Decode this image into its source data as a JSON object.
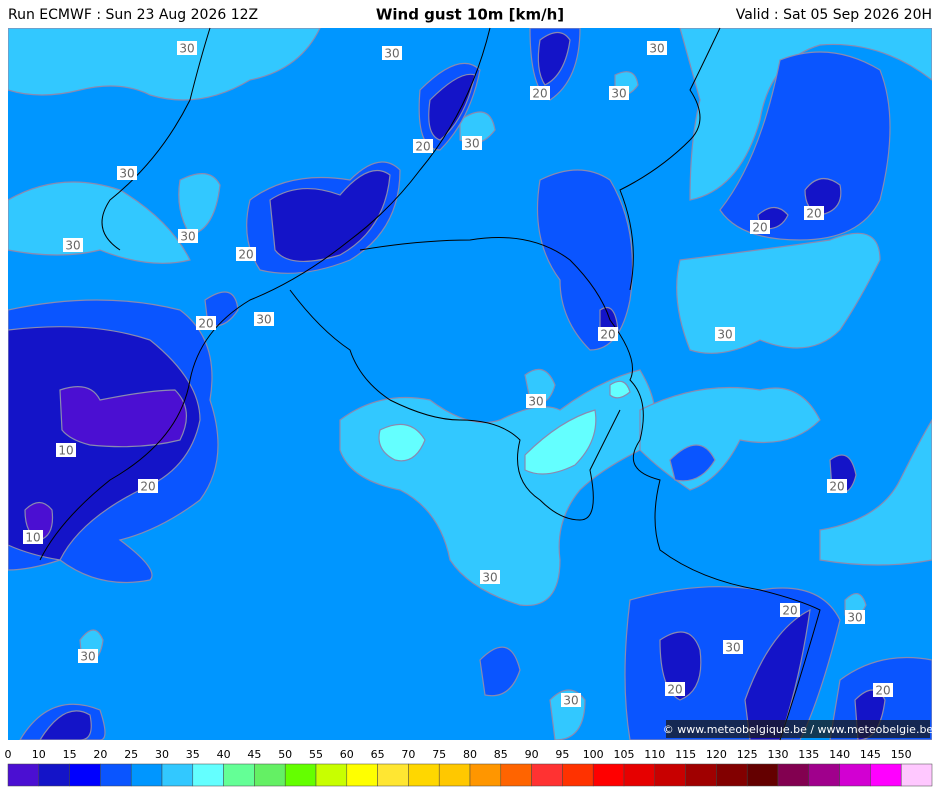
{
  "header": {
    "run": "Run ECMWF : Sun 23 Aug 2026 12Z",
    "title": "Wind gust 10m [km/h]",
    "valid": "Valid : Sat 05 Sep 2026 20H"
  },
  "contour_labels": [
    "30",
    "30",
    "30",
    "20",
    "30",
    "20",
    "30",
    "30",
    "30",
    "30",
    "20",
    "20",
    "30",
    "20",
    "20",
    "20",
    "30",
    "30",
    "10",
    "20",
    "20",
    "10",
    "30",
    "20",
    "30",
    "30",
    "30",
    "20",
    "20",
    "30"
  ],
  "credit": "© www.meteobelgique.be / www.meteobelgie.be",
  "colorbar": {
    "ticks": [
      0,
      10,
      15,
      20,
      25,
      30,
      35,
      40,
      45,
      50,
      55,
      60,
      65,
      70,
      75,
      80,
      85,
      90,
      95,
      100,
      105,
      110,
      115,
      120,
      125,
      130,
      135,
      140,
      145,
      150
    ],
    "colors": [
      "#4b0fd2",
      "#1414c8",
      "#0000ff",
      "#0a55ff",
      "#0096ff",
      "#32c8ff",
      "#64ffff",
      "#64ff96",
      "#64f064",
      "#64ff00",
      "#c8ff00",
      "#ffff00",
      "#ffe632",
      "#ffd700",
      "#ffc800",
      "#ff9600",
      "#ff6400",
      "#ff3232",
      "#ff3200",
      "#ff0000",
      "#e60000",
      "#c80000",
      "#a00000",
      "#820000",
      "#640000",
      "#820050",
      "#a0008c",
      "#d200d2",
      "#ff00ff",
      "#ffc8ff"
    ]
  }
}
